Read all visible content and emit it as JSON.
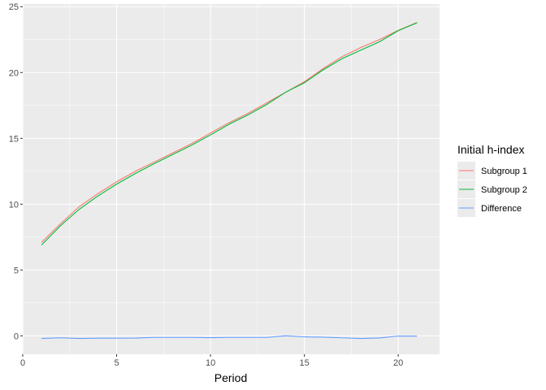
{
  "chart_data": {
    "type": "line",
    "title": "",
    "xlabel": "Period",
    "ylabel": "",
    "xlim": [
      0,
      22.2
    ],
    "ylim": [
      -1.4,
      25.2
    ],
    "xticks": [
      0,
      5,
      10,
      15,
      20
    ],
    "yticks": [
      0,
      5,
      10,
      15,
      20,
      25
    ],
    "grid": true,
    "legend_position": "right",
    "legend_title": "Initial h-index",
    "x": [
      1,
      2,
      3,
      4,
      5,
      6,
      7,
      8,
      9,
      10,
      11,
      12,
      13,
      14,
      15,
      16,
      17,
      18,
      19,
      20,
      21
    ],
    "series": [
      {
        "name": "Subgroup 1",
        "color": "#F8766D",
        "values": [
          7.1,
          8.5,
          9.8,
          10.8,
          11.7,
          12.5,
          13.2,
          13.9,
          14.6,
          15.4,
          16.2,
          16.9,
          17.7,
          18.5,
          19.3,
          20.3,
          21.2,
          21.9,
          22.5,
          23.2,
          23.8
        ]
      },
      {
        "name": "Subgroup 2",
        "color": "#00BA38",
        "values": [
          6.9,
          8.35,
          9.6,
          10.62,
          11.52,
          12.33,
          13.08,
          13.78,
          14.48,
          15.26,
          16.08,
          16.78,
          17.58,
          18.5,
          19.22,
          20.2,
          21.05,
          21.7,
          22.34,
          23.18,
          23.78
        ]
      },
      {
        "name": "Difference",
        "color": "#619CFF",
        "values": [
          -0.2,
          -0.15,
          -0.2,
          -0.18,
          -0.18,
          -0.17,
          -0.12,
          -0.12,
          -0.12,
          -0.14,
          -0.12,
          -0.12,
          -0.12,
          0.0,
          -0.08,
          -0.1,
          -0.15,
          -0.2,
          -0.16,
          -0.02,
          -0.02
        ]
      }
    ]
  }
}
